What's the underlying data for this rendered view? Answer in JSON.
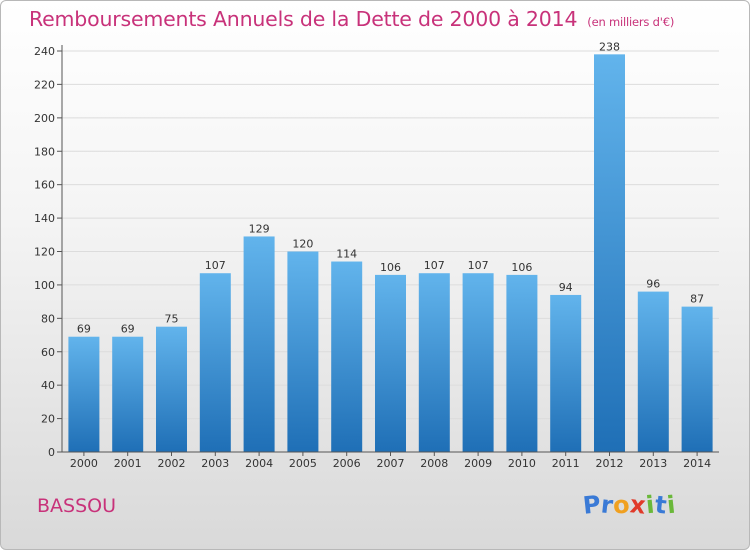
{
  "title": "Remboursements Annuels de la Dette de 2000 à 2014",
  "unit_note": "(en milliers d'€)",
  "place_name": "BASSOU",
  "logo": {
    "letters": [
      "P",
      "r",
      "o",
      "x",
      "i",
      "t",
      "i"
    ],
    "colors": [
      "#3a7ad6",
      "#3a7ad6",
      "#f0a020",
      "#e03a2a",
      "#6ab83a",
      "#3a7ad6",
      "#6ab83a"
    ]
  },
  "colors": {
    "bar_top": "#62b4ec",
    "bar_bottom": "#1f6fb6",
    "title": "#c8327a"
  },
  "chart_data": {
    "type": "bar",
    "categories": [
      "2000",
      "2001",
      "2002",
      "2003",
      "2004",
      "2005",
      "2006",
      "2007",
      "2008",
      "2009",
      "2010",
      "2011",
      "2012",
      "2013",
      "2014"
    ],
    "values": [
      69,
      69,
      75,
      107,
      129,
      120,
      114,
      106,
      107,
      107,
      106,
      94,
      238,
      96,
      87
    ],
    "ylim": [
      0,
      240
    ],
    "yticks": [
      0,
      20,
      40,
      60,
      80,
      100,
      120,
      140,
      160,
      180,
      200,
      220,
      240
    ],
    "grid": true
  }
}
